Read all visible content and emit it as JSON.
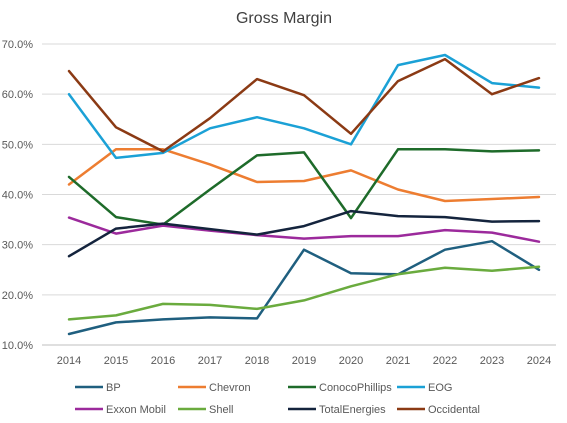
{
  "chart_data": {
    "type": "line",
    "title": "Gross Margin",
    "x": [
      "2014",
      "2015",
      "2016",
      "2017",
      "2018",
      "2019",
      "2020",
      "2021",
      "2022",
      "2023",
      "2024"
    ],
    "ylim": [
      10.0,
      70.0
    ],
    "yticks": [
      "10.0%",
      "20.0%",
      "30.0%",
      "40.0%",
      "50.0%",
      "60.0%",
      "70.0%"
    ],
    "ytick_values": [
      10,
      20,
      30,
      40,
      50,
      60,
      70
    ],
    "grid": true,
    "legend_position": "bottom",
    "series": [
      {
        "name": "BP",
        "color": "#1f5f7f",
        "values": [
          12.2,
          14.5,
          15.1,
          15.5,
          15.3,
          29.0,
          24.3,
          24.1,
          29.0,
          30.7,
          25.0
        ]
      },
      {
        "name": "Chevron",
        "color": "#ed7d31",
        "values": [
          42.0,
          49.0,
          49.0,
          46.0,
          42.5,
          42.7,
          44.8,
          41.0,
          38.7,
          39.1,
          39.5
        ]
      },
      {
        "name": "ConocoPhillips",
        "color": "#1e6b2a",
        "values": [
          43.5,
          35.5,
          34.0,
          41.0,
          47.8,
          48.4,
          35.3,
          49.0,
          49.0,
          48.6,
          48.8
        ]
      },
      {
        "name": "EOG",
        "color": "#1ba1d6",
        "values": [
          60.0,
          47.3,
          48.3,
          53.2,
          55.4,
          53.2,
          50.0,
          65.8,
          67.8,
          62.2,
          61.3
        ]
      },
      {
        "name": "Exxon Mobil",
        "color": "#9c2a9c",
        "values": [
          35.4,
          32.2,
          33.8,
          32.8,
          31.9,
          31.2,
          31.7,
          31.7,
          32.9,
          32.4,
          30.6
        ]
      },
      {
        "name": "Shell",
        "color": "#6aab3e",
        "values": [
          15.1,
          15.9,
          18.2,
          18.0,
          17.2,
          18.9,
          21.7,
          24.1,
          25.4,
          24.8,
          25.6
        ]
      },
      {
        "name": "TotalEnergies",
        "color": "#14243d",
        "values": [
          27.7,
          33.2,
          34.2,
          33.1,
          32.0,
          33.7,
          36.7,
          35.7,
          35.5,
          34.6,
          34.7
        ]
      },
      {
        "name": "Occidental",
        "color": "#8b3a14",
        "values": [
          64.6,
          53.4,
          48.6,
          55.2,
          63.0,
          59.8,
          52.1,
          62.6,
          67.0,
          60.0,
          63.2
        ]
      }
    ]
  }
}
